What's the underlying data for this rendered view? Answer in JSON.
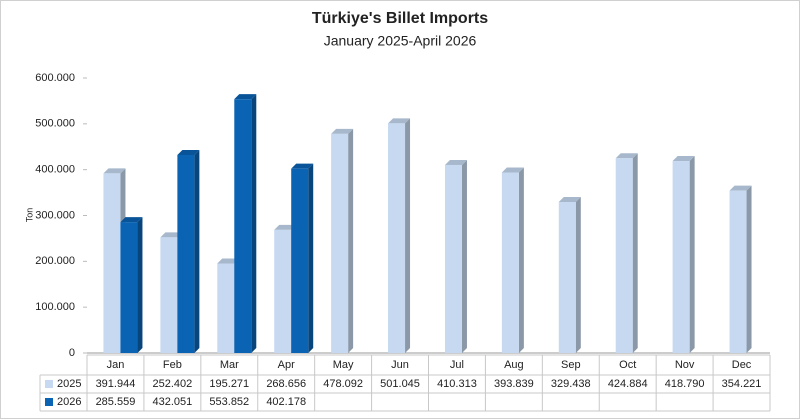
{
  "chart_data": {
    "type": "bar",
    "title": "Türkiye's Billet Imports",
    "subtitle": "January 2025-April 2026",
    "y_label": "Ton",
    "categories": [
      "Jan",
      "Feb",
      "Mar",
      "Apr",
      "May",
      "Jun",
      "Jul",
      "Aug",
      "Sep",
      "Oct",
      "Nov",
      "Dec"
    ],
    "series": [
      {
        "name": "2025",
        "color": "#c6d9f0",
        "values": [
          391944,
          252402,
          195271,
          268656,
          478092,
          501045,
          410313,
          393839,
          329438,
          424884,
          418790,
          354221
        ],
        "value_labels": [
          "391.944",
          "252.402",
          "195.271",
          "268.656",
          "478.092",
          "501.045",
          "410.313",
          "393.839",
          "329.438",
          "424.884",
          "418.790",
          "354.221"
        ]
      },
      {
        "name": "2026",
        "color": "#0b63b3",
        "values": [
          285559,
          432051,
          553852,
          402178,
          null,
          null,
          null,
          null,
          null,
          null,
          null,
          null
        ],
        "value_labels": [
          "285.559",
          "432.051",
          "553.852",
          "402.178",
          null,
          null,
          null,
          null,
          null,
          null,
          null,
          null
        ]
      }
    ],
    "ylim": [
      0,
      600000
    ],
    "yticks": [
      0,
      {
        "value": 100000,
        "label": "100.000"
      },
      {
        "value": 200000,
        "label": "200.000"
      },
      {
        "value": 300000,
        "label": "300.000"
      },
      {
        "value": 400000,
        "label": "400.000"
      },
      {
        "value": 500000,
        "label": "500.000"
      },
      {
        "value": 600000,
        "label": "600.000"
      }
    ],
    "grid": false
  }
}
